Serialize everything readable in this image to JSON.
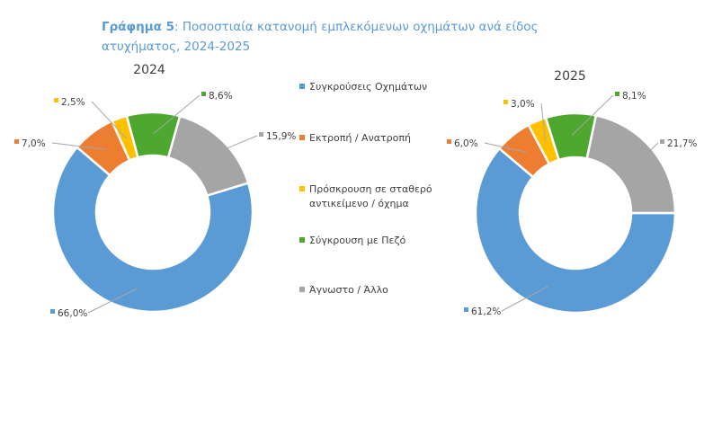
{
  "title": {
    "prefix": "Γράφημα 5",
    "text": ": Ποσοστιαία κατανομή εμπλεκόμενων οχημάτων ανά είδος ατυχήματος, 2024-2025"
  },
  "chart_data": [
    {
      "type": "pie",
      "title": "2024",
      "categories": [
        "Συγκρούσεις Οχημάτων",
        "Εκτροπή / Ανατροπή",
        "Πρόσκρουση σε σταθερό αντικείμενο / όχημα",
        "Σύγκρουση με Πεζό",
        "Άγνωστο / Άλλο"
      ],
      "values": [
        66.0,
        7.0,
        2.5,
        8.6,
        15.9
      ],
      "labels": [
        "66,0%",
        "7,0%",
        "2,5%",
        "8,6%",
        "15,9%"
      ]
    },
    {
      "type": "pie",
      "title": "2025",
      "categories": [
        "Συγκρούσεις Οχημάτων",
        "Εκτροπή / Ανατροπή",
        "Πρόσκρουση σε σταθερό αντικείμενο / όχημα",
        "Σύγκρουση με Πεζό",
        "Άγνωστο / Άλλο"
      ],
      "values": [
        61.2,
        6.0,
        3.0,
        8.1,
        21.7
      ],
      "labels": [
        "61,2%",
        "6,0%",
        "3,0%",
        "8,1%",
        "21,7%"
      ]
    }
  ],
  "legend": [
    {
      "label": "Συγκρούσεις Οχημάτων",
      "color": "#5b9bd5"
    },
    {
      "label": "Εκτροπή / Ανατροπή",
      "color": "#ed7d31"
    },
    {
      "label": "Πρόσκρουση σε σταθερό αντικείμενο / όχημα",
      "color": "#ffc000"
    },
    {
      "label": "Σύγκρουση με Πεζό",
      "color": "#4ea72e"
    },
    {
      "label": "Άγνωστο / Άλλο",
      "color": "#a5a5a5"
    }
  ]
}
